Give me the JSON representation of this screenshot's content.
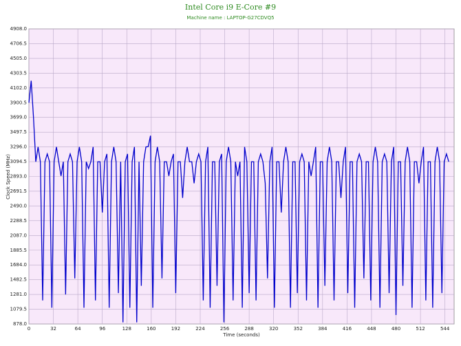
{
  "chart_data": {
    "type": "line",
    "title": "Intel Core i9 E-Core #9",
    "subtitle": "Machine name : LAPTOP-G27CDVQ5",
    "x_label": "Time (seconds)",
    "y_label": "Clock Speed (MHz)",
    "background": "#f8e8fa",
    "grid": true,
    "xlim": [
      0,
      556
    ],
    "ylim": [
      878,
      4908
    ],
    "xticks": [
      0,
      32,
      64,
      96,
      128,
      160,
      192,
      224,
      256,
      288,
      320,
      352,
      384,
      416,
      448,
      480,
      512,
      544
    ],
    "yticks": [
      {
        "value": 878,
        "label": "878.0"
      },
      1079.5,
      {
        "value": 1281,
        "label": "1281.0"
      },
      1482.5,
      {
        "value": 1684,
        "label": "1684.0"
      },
      1885.5,
      {
        "value": 2087,
        "label": "2087.0"
      },
      2288.5,
      {
        "value": 2490,
        "label": "2490.0"
      },
      2691.5,
      {
        "value": 2893,
        "label": "2893.0"
      },
      3094.5,
      {
        "value": 3296,
        "label": "3296.0"
      },
      3497.5,
      {
        "value": 3699,
        "label": "3699.0"
      },
      3900.5,
      {
        "value": 4102,
        "label": "4102.0"
      },
      4303.5,
      {
        "value": 4505,
        "label": "4505.0"
      },
      4706.5,
      {
        "value": 4908,
        "label": "4908.0"
      }
    ],
    "x": [
      0,
      3,
      6,
      9,
      12,
      15,
      18,
      21,
      24,
      27,
      30,
      33,
      36,
      39,
      42,
      45,
      48,
      51,
      54,
      57,
      60,
      63,
      66,
      69,
      72,
      75,
      78,
      81,
      84,
      87,
      90,
      93,
      96,
      99,
      102,
      105,
      108,
      111,
      114,
      117,
      120,
      123,
      126,
      129,
      132,
      135,
      138,
      141,
      144,
      147,
      150,
      153,
      156,
      159,
      162,
      165,
      168,
      171,
      174,
      177,
      180,
      183,
      186,
      189,
      192,
      195,
      198,
      201,
      204,
      207,
      210,
      213,
      216,
      219,
      222,
      225,
      228,
      231,
      234,
      237,
      240,
      243,
      246,
      249,
      252,
      255,
      258,
      261,
      264,
      267,
      270,
      273,
      276,
      279,
      282,
      285,
      288,
      291,
      294,
      297,
      300,
      303,
      306,
      309,
      312,
      315,
      318,
      321,
      324,
      327,
      330,
      333,
      336,
      339,
      342,
      345,
      348,
      351,
      354,
      357,
      360,
      363,
      366,
      369,
      372,
      375,
      378,
      381,
      384,
      387,
      390,
      393,
      396,
      399,
      402,
      405,
      408,
      411,
      414,
      417,
      420,
      423,
      426,
      429,
      432,
      435,
      438,
      441,
      444,
      447,
      450,
      453,
      456,
      459,
      462,
      465,
      468,
      471,
      474,
      477,
      480,
      483,
      486,
      489,
      492,
      495,
      498,
      501,
      504,
      507,
      510,
      513,
      516,
      519,
      522,
      525,
      528,
      531,
      534,
      537,
      540,
      543,
      546,
      549
    ],
    "series": [
      {
        "name": "Clock Speed",
        "color": "#0000cc",
        "values": [
          3900,
          4200,
          3700,
          3094,
          3296,
          3094,
          1200,
          3094,
          3200,
          3094,
          1100,
          3094,
          3296,
          3094,
          2900,
          3094,
          1281,
          3094,
          3200,
          3094,
          1500,
          3094,
          3296,
          3094,
          1100,
          3094,
          3000,
          3094,
          3296,
          1200,
          3094,
          3094,
          2400,
          3094,
          3200,
          1100,
          3094,
          3296,
          3094,
          1300,
          3094,
          900,
          3094,
          3200,
          1100,
          3094,
          3296,
          900,
          3094,
          1400,
          3094,
          3296,
          3300,
          3450,
          1100,
          3094,
          3296,
          3094,
          1500,
          3094,
          3094,
          2900,
          3094,
          3200,
          1300,
          3094,
          3094,
          2600,
          3094,
          3296,
          3094,
          3094,
          2800,
          3094,
          3200,
          3094,
          1200,
          3094,
          3296,
          1100,
          3094,
          3094,
          1400,
          3094,
          3200,
          900,
          3094,
          3296,
          3094,
          1200,
          3094,
          2900,
          3094,
          1100,
          3296,
          3094,
          1300,
          3094,
          3094,
          1200,
          3094,
          3200,
          3094,
          2800,
          1500,
          3094,
          3296,
          1100,
          3094,
          3094,
          2400,
          3094,
          3296,
          3094,
          1100,
          3094,
          3094,
          1300,
          3094,
          3200,
          3094,
          1200,
          3094,
          2900,
          3094,
          3296,
          1100,
          3094,
          3094,
          1400,
          3094,
          3296,
          3094,
          1200,
          3094,
          3094,
          2600,
          3094,
          3296,
          1300,
          3094,
          3094,
          1100,
          3094,
          3200,
          3094,
          1500,
          3094,
          3094,
          1200,
          3094,
          3296,
          3094,
          1100,
          3094,
          3200,
          3094,
          1300,
          3094,
          3296,
          1000,
          3094,
          3094,
          1400,
          3094,
          3296,
          3094,
          1100,
          3094,
          3094,
          2800,
          3094,
          3296,
          1200,
          3094,
          3094,
          1100,
          3094,
          3296,
          3094,
          1300,
          3094,
          3200,
          3094
        ]
      }
    ]
  }
}
